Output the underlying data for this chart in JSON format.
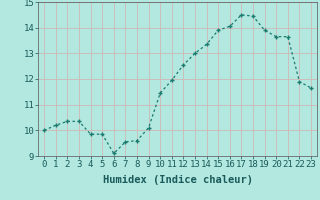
{
  "xlabel": "Humidex (Indice chaleur)",
  "x": [
    0,
    1,
    2,
    3,
    4,
    5,
    6,
    7,
    8,
    9,
    10,
    11,
    12,
    13,
    14,
    15,
    16,
    17,
    18,
    19,
    20,
    21,
    22,
    23
  ],
  "y": [
    10.0,
    10.2,
    10.35,
    10.35,
    9.85,
    9.85,
    9.1,
    9.55,
    9.6,
    10.1,
    11.45,
    11.95,
    12.55,
    13.0,
    13.35,
    13.9,
    14.05,
    14.5,
    14.45,
    13.9,
    13.65,
    13.65,
    11.9,
    11.65
  ],
  "line_color": "#1a7a6e",
  "marker": "+",
  "background_color": "#b2e8e0",
  "grid_color": "#d0b8b8",
  "ylim": [
    9,
    15
  ],
  "xlim": [
    -0.5,
    23.5
  ],
  "yticks": [
    9,
    10,
    11,
    12,
    13,
    14,
    15
  ],
  "xticks": [
    0,
    1,
    2,
    3,
    4,
    5,
    6,
    7,
    8,
    9,
    10,
    11,
    12,
    13,
    14,
    15,
    16,
    17,
    18,
    19,
    20,
    21,
    22,
    23
  ],
  "tick_fontsize": 6.5,
  "label_fontsize": 7.5
}
